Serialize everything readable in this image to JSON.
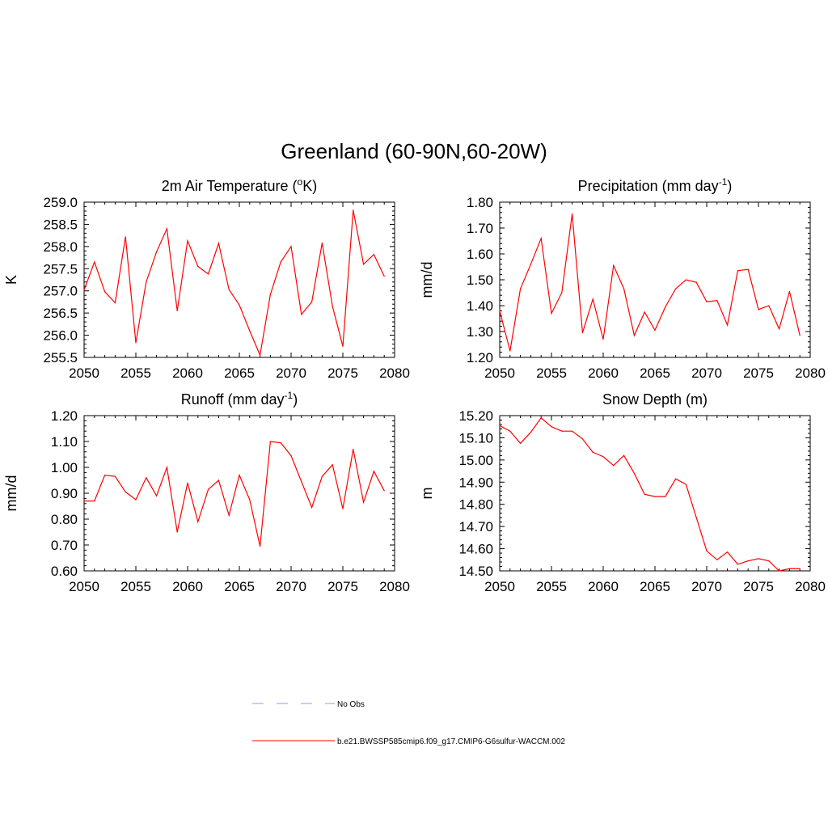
{
  "title": "Greenland (60-90N,60-20W)",
  "line_color": "#ff0000",
  "chart_data": [
    {
      "type": "line",
      "title": "2m Air Temperature (",
      "title_sup": "o",
      "title_tail": "K)",
      "ylabel": "K",
      "xlim": [
        2050,
        2080
      ],
      "ylim": [
        255.5,
        259.0
      ],
      "xticks": [
        2050,
        2055,
        2060,
        2065,
        2070,
        2075,
        2080
      ],
      "yticks": [
        255.5,
        256.0,
        256.5,
        257.0,
        257.5,
        258.0,
        258.5,
        259.0
      ],
      "ytick_decimals": 1,
      "series": [
        {
          "x": [
            2050,
            2051,
            2052,
            2053,
            2054,
            2055,
            2056,
            2057,
            2058,
            2059,
            2060,
            2061,
            2062,
            2063,
            2064,
            2065,
            2066,
            2067,
            2068,
            2069,
            2070,
            2071,
            2072,
            2073,
            2074,
            2075,
            2076,
            2077,
            2078,
            2079
          ],
          "values": [
            257.02,
            257.65,
            256.98,
            256.73,
            258.22,
            255.83,
            257.2,
            257.88,
            258.4,
            256.55,
            258.13,
            257.55,
            257.38,
            258.07,
            257.03,
            256.68,
            256.1,
            255.55,
            256.92,
            257.65,
            258.0,
            256.47,
            256.75,
            258.08,
            256.65,
            255.75,
            258.82,
            257.6,
            257.82,
            257.33
          ]
        }
      ]
    },
    {
      "type": "line",
      "title": "Precipitation (mm day",
      "title_sup": "-1",
      "title_tail": ")",
      "ylabel": "mm/d",
      "xlim": [
        2050,
        2080
      ],
      "ylim": [
        1.2,
        1.8
      ],
      "xticks": [
        2050,
        2055,
        2060,
        2065,
        2070,
        2075,
        2080
      ],
      "yticks": [
        1.2,
        1.3,
        1.4,
        1.5,
        1.6,
        1.7,
        1.8
      ],
      "ytick_decimals": 2,
      "series": [
        {
          "x": [
            2050,
            2051,
            2052,
            2053,
            2054,
            2055,
            2056,
            2057,
            2058,
            2059,
            2060,
            2061,
            2062,
            2063,
            2064,
            2065,
            2066,
            2067,
            2068,
            2069,
            2070,
            2071,
            2072,
            2073,
            2074,
            2075,
            2076,
            2077,
            2078,
            2079
          ],
          "values": [
            1.38,
            1.225,
            1.465,
            1.56,
            1.66,
            1.37,
            1.45,
            1.755,
            1.295,
            1.425,
            1.27,
            1.555,
            1.465,
            1.285,
            1.375,
            1.305,
            1.395,
            1.465,
            1.5,
            1.49,
            1.415,
            1.42,
            1.325,
            1.535,
            1.54,
            1.385,
            1.4,
            1.31,
            1.455,
            1.285
          ]
        }
      ]
    },
    {
      "type": "line",
      "title": "Runoff (mm day",
      "title_sup": "-1",
      "title_tail": ")",
      "ylabel": "mm/d",
      "xlim": [
        2050,
        2080
      ],
      "ylim": [
        0.6,
        1.2
      ],
      "xticks": [
        2050,
        2055,
        2060,
        2065,
        2070,
        2075,
        2080
      ],
      "yticks": [
        0.6,
        0.7,
        0.8,
        0.9,
        1.0,
        1.1,
        1.2
      ],
      "ytick_decimals": 2,
      "series": [
        {
          "x": [
            2050,
            2051,
            2052,
            2053,
            2054,
            2055,
            2056,
            2057,
            2058,
            2059,
            2060,
            2061,
            2062,
            2063,
            2064,
            2065,
            2066,
            2067,
            2068,
            2069,
            2070,
            2071,
            2072,
            2073,
            2074,
            2075,
            2076,
            2077,
            2078,
            2079
          ],
          "values": [
            0.87,
            0.87,
            0.97,
            0.965,
            0.905,
            0.875,
            0.96,
            0.89,
            1.0,
            0.75,
            0.94,
            0.79,
            0.915,
            0.95,
            0.815,
            0.97,
            0.875,
            0.695,
            1.1,
            1.095,
            1.045,
            0.945,
            0.845,
            0.965,
            1.01,
            0.84,
            1.07,
            0.865,
            0.985,
            0.91
          ]
        }
      ]
    },
    {
      "type": "line",
      "title": "Snow Depth (m)",
      "title_sup": "",
      "title_tail": "",
      "ylabel": "m",
      "xlim": [
        2050,
        2080
      ],
      "ylim": [
        14.5,
        15.2
      ],
      "xticks": [
        2050,
        2055,
        2060,
        2065,
        2070,
        2075,
        2080
      ],
      "yticks": [
        14.5,
        14.6,
        14.7,
        14.8,
        14.9,
        15.0,
        15.1,
        15.2
      ],
      "ytick_decimals": 2,
      "series": [
        {
          "x": [
            2050,
            2051,
            2052,
            2053,
            2054,
            2055,
            2056,
            2057,
            2058,
            2059,
            2060,
            2061,
            2062,
            2063,
            2064,
            2065,
            2066,
            2067,
            2068,
            2069,
            2070,
            2071,
            2072,
            2073,
            2074,
            2075,
            2076,
            2077,
            2078,
            2079
          ],
          "values": [
            15.155,
            15.13,
            15.075,
            15.125,
            15.19,
            15.15,
            15.13,
            15.13,
            15.095,
            15.035,
            15.015,
            14.975,
            15.02,
            14.94,
            14.845,
            14.835,
            14.835,
            14.915,
            14.89,
            14.74,
            14.59,
            14.55,
            14.585,
            14.53,
            14.545,
            14.555,
            14.545,
            14.5,
            14.51,
            14.51
          ]
        }
      ]
    }
  ],
  "legend": [
    {
      "label": "No Obs",
      "style": "dashed",
      "color": "#9999dd"
    },
    {
      "label": "b.e21.BWSSP585cmip6.f09_g17.CMIP6-G6sulfur-WACCM.002",
      "style": "solid",
      "color": "#ff0000"
    }
  ]
}
